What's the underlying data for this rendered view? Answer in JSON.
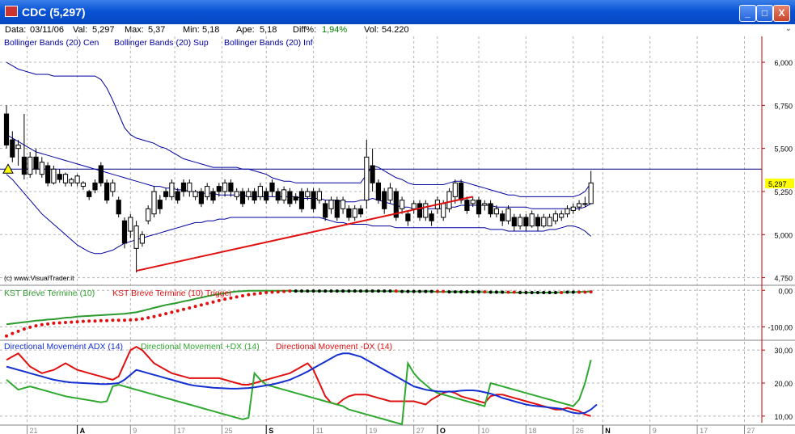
{
  "window": {
    "title": "CDC (5,297)",
    "buttons": {
      "minimize": "_",
      "maximize": "□",
      "close": "X"
    }
  },
  "info": {
    "data_label": "Data:",
    "date": "03/11/06",
    "val_label": "Val:",
    "val": "5,297",
    "max_label": "Max:",
    "max": "5,37",
    "min_label": "Min:",
    "min": "5,18",
    "ape_label": "Ape:",
    "ape": "5,18",
    "diff_label": "Diff%:",
    "diff": "1,94%",
    "vol_label": "Vol:",
    "vol": "54.220"
  },
  "colors": {
    "band": "#0000a0",
    "grid": "#b4b4b4",
    "axis": "#c00000",
    "trendline": "#e01010",
    "kst": "#2c9a2c",
    "trigger": "#e01010",
    "adx": "#1530d0",
    "plus_dx": "#2fa82f",
    "minus_dx": "#e01010",
    "price_highlight": "#ffff00"
  },
  "chart_data": [
    {
      "type": "candlestick",
      "legend": [
        "Bollinger Bands (20) Cen",
        "Bollinger Bands (20) Sup",
        "Bollinger Bands (20) Inf"
      ],
      "watermark": "(c) www.VisualTrader.it",
      "ylim": [
        4.72,
        6.08
      ],
      "yticks": [
        4.75,
        5.0,
        5.25,
        5.5,
        5.75,
        6.0
      ],
      "ytick_labels": [
        "4,750",
        "5,000",
        "5,250",
        "5,500",
        "5,750",
        "6,000"
      ],
      "last_price": 5.297,
      "last_price_label": "5,297",
      "reference_line": 5.38,
      "open": [
        5.7,
        5.55,
        5.5,
        5.45,
        5.35,
        5.45,
        5.35,
        5.4,
        5.3,
        5.35,
        5.3,
        5.3,
        5.3,
        5.28,
        5.25,
        5.3,
        5.4,
        5.3,
        5.25,
        5.2,
        5.08,
        5.02,
        4.92,
        4.95,
        5.08,
        5.12,
        5.2,
        5.25,
        5.22,
        5.25,
        5.3,
        5.25,
        5.22,
        5.25,
        5.22,
        5.25,
        5.28,
        5.25,
        5.3,
        5.22,
        5.25,
        5.22,
        5.25,
        5.22,
        5.25,
        5.3,
        5.25,
        5.2,
        5.25,
        5.22,
        5.25,
        5.22,
        5.25,
        5.2,
        5.18,
        5.15,
        5.2,
        5.15,
        5.15,
        5.1,
        5.15,
        5.2,
        5.4,
        5.3,
        5.25,
        5.2,
        5.25,
        5.15,
        5.12,
        5.15,
        5.18,
        5.1,
        5.12,
        5.15,
        5.1,
        5.15,
        5.22,
        5.3,
        5.2,
        5.18,
        5.2,
        5.17,
        5.18,
        5.12,
        5.12,
        5.08,
        5.1,
        5.05,
        5.1,
        5.05,
        5.1,
        5.05,
        5.05,
        5.08,
        5.1,
        5.12,
        5.14,
        5.16,
        5.18,
        5.18
      ],
      "close": [
        5.52,
        5.45,
        5.52,
        5.35,
        5.45,
        5.38,
        5.42,
        5.3,
        5.38,
        5.32,
        5.35,
        5.32,
        5.34,
        5.3,
        5.22,
        5.26,
        5.3,
        5.2,
        5.3,
        5.12,
        4.95,
        5.1,
        5.05,
        5.0,
        5.15,
        5.25,
        5.15,
        5.22,
        5.3,
        5.2,
        5.25,
        5.3,
        5.25,
        5.18,
        5.28,
        5.2,
        5.25,
        5.3,
        5.25,
        5.25,
        5.18,
        5.25,
        5.2,
        5.28,
        5.2,
        5.25,
        5.2,
        5.26,
        5.18,
        5.2,
        5.15,
        5.25,
        5.15,
        5.25,
        5.1,
        5.2,
        5.1,
        5.2,
        5.1,
        5.15,
        5.12,
        5.45,
        5.3,
        5.2,
        5.15,
        5.27,
        5.1,
        5.2,
        5.08,
        5.18,
        5.1,
        5.18,
        5.08,
        5.2,
        5.18,
        5.25,
        5.3,
        5.2,
        5.14,
        5.2,
        5.12,
        5.18,
        5.12,
        5.15,
        5.08,
        5.15,
        5.05,
        5.1,
        5.05,
        5.12,
        5.05,
        5.1,
        5.1,
        5.12,
        5.12,
        5.15,
        5.16,
        5.18,
        5.18,
        5.3
      ],
      "high": [
        5.75,
        5.6,
        5.55,
        5.7,
        5.48,
        5.5,
        5.45,
        5.42,
        5.4,
        5.38,
        5.36,
        5.33,
        5.35,
        5.31,
        5.26,
        5.32,
        5.42,
        5.32,
        5.32,
        5.22,
        5.1,
        5.12,
        5.08,
        5.02,
        5.17,
        5.28,
        5.23,
        5.27,
        5.32,
        5.27,
        5.32,
        5.32,
        5.26,
        5.27,
        5.3,
        5.27,
        5.3,
        5.32,
        5.32,
        5.27,
        5.27,
        5.27,
        5.27,
        5.3,
        5.27,
        5.32,
        5.27,
        5.28,
        5.27,
        5.24,
        5.27,
        5.27,
        5.27,
        5.27,
        5.2,
        5.22,
        5.22,
        5.22,
        5.17,
        5.17,
        5.17,
        5.55,
        5.5,
        5.32,
        5.27,
        5.3,
        5.27,
        5.22,
        5.14,
        5.2,
        5.2,
        5.2,
        5.14,
        5.22,
        5.2,
        5.27,
        5.32,
        5.32,
        5.22,
        5.22,
        5.22,
        5.2,
        5.2,
        5.17,
        5.14,
        5.17,
        5.12,
        5.12,
        5.12,
        5.14,
        5.12,
        5.12,
        5.12,
        5.14,
        5.14,
        5.17,
        5.18,
        5.2,
        5.22,
        5.37
      ],
      "low": [
        5.5,
        5.42,
        5.4,
        5.32,
        5.33,
        5.35,
        5.33,
        5.28,
        5.29,
        5.3,
        5.28,
        5.28,
        5.28,
        5.26,
        5.2,
        5.24,
        5.28,
        5.18,
        5.22,
        5.1,
        4.92,
        4.98,
        4.78,
        4.93,
        5.06,
        5.1,
        5.12,
        5.2,
        5.2,
        5.18,
        5.22,
        5.22,
        5.2,
        5.16,
        5.2,
        5.18,
        5.22,
        5.22,
        5.22,
        5.2,
        5.16,
        5.2,
        5.18,
        5.2,
        5.18,
        5.22,
        5.18,
        5.18,
        5.16,
        5.18,
        5.13,
        5.2,
        5.13,
        5.18,
        5.08,
        5.12,
        5.08,
        5.12,
        5.08,
        5.08,
        5.1,
        5.15,
        5.25,
        5.18,
        5.12,
        5.18,
        5.08,
        5.12,
        5.05,
        5.12,
        5.08,
        5.08,
        5.05,
        5.12,
        5.08,
        5.13,
        5.18,
        5.18,
        5.12,
        5.16,
        5.1,
        5.14,
        5.1,
        5.1,
        5.05,
        5.06,
        5.02,
        5.03,
        5.02,
        5.04,
        5.02,
        5.04,
        5.06,
        5.06,
        5.08,
        5.1,
        5.12,
        5.14,
        5.16,
        5.18
      ],
      "bb_center": [
        5.58,
        5.56,
        5.54,
        5.52,
        5.5,
        5.48,
        5.47,
        5.46,
        5.45,
        5.44,
        5.43,
        5.42,
        5.41,
        5.4,
        5.39,
        5.38,
        5.37,
        5.36,
        5.35,
        5.34,
        5.33,
        5.32,
        5.31,
        5.3,
        5.29,
        5.28,
        5.28,
        5.27,
        5.27,
        5.26,
        5.26,
        5.25,
        5.25,
        5.24,
        5.24,
        5.24,
        5.23,
        5.23,
        5.23,
        5.23,
        5.23,
        5.22,
        5.22,
        5.22,
        5.22,
        5.22,
        5.22,
        5.22,
        5.22,
        5.22,
        5.21,
        5.21,
        5.21,
        5.21,
        5.2,
        5.2,
        5.2,
        5.19,
        5.19,
        5.19,
        5.2,
        5.2,
        5.21,
        5.2,
        5.19,
        5.18,
        5.17,
        5.16,
        5.16,
        5.15,
        5.15,
        5.15,
        5.15,
        5.15,
        5.15,
        5.16,
        5.16,
        5.17,
        5.17,
        5.17,
        5.17,
        5.17,
        5.17,
        5.16,
        5.16,
        5.16,
        5.16,
        5.16,
        5.16,
        5.15,
        5.15,
        5.15,
        5.15,
        5.15,
        5.15,
        5.15,
        5.15,
        5.15,
        5.16,
        5.18
      ],
      "bb_upper": [
        6.0,
        5.98,
        5.96,
        5.95,
        5.94,
        5.93,
        5.93,
        5.93,
        5.92,
        5.92,
        5.92,
        5.92,
        5.92,
        5.92,
        5.92,
        5.92,
        5.9,
        5.85,
        5.78,
        5.7,
        5.62,
        5.58,
        5.56,
        5.55,
        5.54,
        5.53,
        5.51,
        5.5,
        5.48,
        5.46,
        5.44,
        5.43,
        5.42,
        5.41,
        5.4,
        5.39,
        5.39,
        5.39,
        5.39,
        5.39,
        5.38,
        5.38,
        5.37,
        5.36,
        5.35,
        5.33,
        5.32,
        5.31,
        5.31,
        5.3,
        5.3,
        5.3,
        5.3,
        5.3,
        5.3,
        5.3,
        5.3,
        5.3,
        5.3,
        5.3,
        5.3,
        5.35,
        5.4,
        5.39,
        5.37,
        5.35,
        5.33,
        5.32,
        5.3,
        5.29,
        5.29,
        5.29,
        5.29,
        5.29,
        5.29,
        5.3,
        5.31,
        5.31,
        5.3,
        5.29,
        5.28,
        5.27,
        5.26,
        5.25,
        5.24,
        5.23,
        5.23,
        5.22,
        5.22,
        5.22,
        5.22,
        5.22,
        5.22,
        5.22,
        5.22,
        5.22,
        5.22,
        5.23,
        5.25,
        5.3
      ],
      "bb_lower": [
        5.35,
        5.32,
        5.28,
        5.24,
        5.2,
        5.16,
        5.12,
        5.09,
        5.06,
        5.03,
        5.0,
        4.97,
        4.94,
        4.92,
        4.9,
        4.89,
        4.89,
        4.9,
        4.91,
        4.93,
        4.95,
        4.96,
        4.97,
        4.98,
        4.99,
        5.0,
        5.01,
        5.02,
        5.03,
        5.04,
        5.05,
        5.06,
        5.07,
        5.07,
        5.08,
        5.08,
        5.09,
        5.09,
        5.1,
        5.1,
        5.1,
        5.1,
        5.1,
        5.1,
        5.1,
        5.1,
        5.1,
        5.1,
        5.1,
        5.1,
        5.1,
        5.1,
        5.1,
        5.1,
        5.09,
        5.08,
        5.07,
        5.07,
        5.06,
        5.06,
        5.06,
        5.06,
        5.05,
        5.05,
        5.05,
        5.05,
        5.04,
        5.04,
        5.04,
        5.04,
        5.04,
        5.04,
        5.04,
        5.04,
        5.04,
        5.04,
        5.04,
        5.04,
        5.04,
        5.04,
        5.04,
        5.04,
        5.03,
        5.03,
        5.03,
        5.02,
        5.02,
        5.02,
        5.02,
        5.02,
        5.02,
        5.02,
        5.03,
        5.03,
        5.04,
        5.05,
        5.05,
        5.04,
        5.02,
        4.99
      ],
      "trendline": [
        [
          22,
          4.79
        ],
        [
          79,
          5.22
        ]
      ]
    },
    {
      "type": "line",
      "legend": [
        "KST Breve Termine (10)",
        "KST Breve Termine (10) Trigger"
      ],
      "ylim": [
        -130,
        5
      ],
      "yticks": [
        0,
        -100
      ],
      "ytick_labels": [
        "0,00",
        "-100,00"
      ],
      "kst": [
        -93,
        -91,
        -89,
        -87,
        -85,
        -83,
        -82,
        -80,
        -79,
        -77,
        -75,
        -74,
        -72,
        -71,
        -70,
        -69,
        -68,
        -67,
        -66,
        -65,
        -64,
        -62,
        -60,
        -56,
        -52,
        -48,
        -44,
        -40,
        -37,
        -34,
        -30,
        -27,
        -23,
        -20,
        -16,
        -13,
        -10,
        -8,
        -5,
        -3,
        -2,
        -1,
        -1,
        -1,
        -1,
        -1,
        -1,
        -1,
        -1,
        -2,
        -2,
        -2,
        -2,
        -2,
        -2,
        -2,
        -2,
        -2,
        -2,
        -2,
        -2,
        -2,
        -2,
        -2,
        -2,
        -2,
        -3,
        -3,
        -3,
        -3,
        -3,
        -3,
        -3,
        -4,
        -4,
        -4,
        -4,
        -4,
        -4,
        -4,
        -4,
        -5,
        -5,
        -5,
        -5,
        -6,
        -6,
        -6,
        -6,
        -6,
        -6,
        -6,
        -6,
        -6,
        -5,
        -5,
        -5,
        -4,
        -4,
        -3
      ],
      "trigger": [
        -125,
        -118,
        -112,
        -106,
        -101,
        -97,
        -94,
        -92,
        -90,
        -89,
        -88,
        -87,
        -86,
        -85,
        -84,
        -84,
        -83,
        -83,
        -82,
        -82,
        -82,
        -81,
        -80,
        -78,
        -75,
        -72,
        -68,
        -64,
        -60,
        -56,
        -52,
        -48,
        -44,
        -40,
        -36,
        -32,
        -28,
        -24,
        -21,
        -18,
        -15,
        -12,
        -10,
        -8,
        -6,
        -5,
        -4,
        -3,
        -2,
        -2,
        -2,
        -2,
        -2,
        -2,
        -2,
        -2,
        -2,
        -2,
        -2,
        -2,
        -2,
        -2,
        -2,
        -2,
        -2,
        -2,
        -2,
        -3,
        -3,
        -3,
        -3,
        -3,
        -3,
        -3,
        -3,
        -4,
        -4,
        -4,
        -4,
        -4,
        -4,
        -4,
        -5,
        -5,
        -5,
        -5,
        -5,
        -6,
        -6,
        -6,
        -6,
        -6,
        -6,
        -6,
        -6,
        -5,
        -5,
        -5,
        -5,
        -4
      ]
    },
    {
      "type": "line",
      "legend": [
        "Directional Movement ADX (14)",
        "Directional Movement +DX (14)",
        "Directional Movement -DX (14)"
      ],
      "ylim": [
        8,
        32
      ],
      "yticks": [
        10,
        20,
        30
      ],
      "ytick_labels": [
        "10,00",
        "20,00",
        "30,00"
      ],
      "adx": [
        25,
        24.5,
        24,
        23.5,
        23,
        22.5,
        22,
        21.5,
        21,
        20.7,
        20.4,
        20.2,
        20.1,
        20,
        19.9,
        19.8,
        19.7,
        19.7,
        19.8,
        20,
        21,
        22.5,
        24,
        23.5,
        23,
        22.5,
        22,
        21.5,
        21,
        20.5,
        20,
        19.5,
        19.2,
        19,
        18.8,
        18.6,
        18.5,
        18.4,
        18.3,
        18.3,
        18.4,
        18.5,
        18.7,
        19,
        19.3,
        19.6,
        20,
        20.5,
        21,
        21.8,
        22.6,
        23.5,
        24.5,
        25.5,
        26.5,
        27.5,
        28.5,
        29,
        29,
        28.5,
        28,
        27,
        26,
        25,
        24,
        23,
        22,
        21,
        20,
        19,
        18.5,
        18,
        17.7,
        17.5,
        17.4,
        17.4,
        17.5,
        17.7,
        17.8,
        17.8,
        17.6,
        17.2,
        16.8,
        16.2,
        15.5,
        15,
        14.5,
        14,
        13.5,
        13.2,
        13,
        12.8,
        12.6,
        12.4,
        12.2,
        11.5,
        11,
        10.8,
        11,
        12,
        13.5
      ],
      "plus_dx": [
        21,
        19.5,
        18,
        18.5,
        19,
        18.5,
        18,
        17.5,
        17,
        16.5,
        16,
        15.7,
        15.4,
        15.1,
        14.8,
        14.5,
        14.2,
        14.5,
        19,
        19.5,
        19,
        18.5,
        18,
        17.5,
        17,
        16.5,
        16,
        15.5,
        15,
        14.5,
        14,
        13.5,
        13,
        12.5,
        12,
        11.5,
        11,
        10.5,
        10,
        9.5,
        9,
        9.5,
        23,
        21,
        19.5,
        19,
        18.5,
        18,
        17.5,
        17,
        16.5,
        16,
        15.5,
        15,
        14.5,
        14,
        13.5,
        13,
        12,
        11.5,
        11,
        10.5,
        10,
        9.5,
        9,
        8.5,
        8,
        7.5,
        26,
        23,
        21,
        19.5,
        18,
        17,
        16.5,
        16,
        15.5,
        15,
        14.5,
        14,
        13.5,
        13,
        20,
        19.5,
        19,
        18.5,
        18,
        17.5,
        17,
        16.5,
        16,
        15.5,
        15,
        14.5,
        14,
        13.5,
        13,
        15,
        20,
        27
      ],
      "minus_dx": [
        27,
        28,
        29,
        27,
        25,
        24,
        23,
        23.5,
        24,
        25,
        26,
        25,
        24,
        23.5,
        23,
        22.5,
        22,
        21.5,
        21,
        22,
        26,
        30,
        31,
        30,
        28,
        26,
        25,
        24,
        23,
        22.5,
        22,
        21.5,
        21.5,
        21.5,
        21.5,
        21.5,
        21.5,
        21,
        20.5,
        20,
        19.5,
        19.5,
        20,
        20.5,
        21,
        21.5,
        22,
        22.5,
        23,
        24,
        25,
        26,
        24,
        20,
        16,
        14,
        13.5,
        15,
        16,
        16.5,
        16.5,
        16.5,
        16,
        15.5,
        15,
        14.5,
        14.5,
        14.5,
        14.5,
        14.5,
        14,
        13.5,
        15,
        16,
        17,
        17.5,
        17,
        16,
        15.5,
        15,
        14.5,
        14,
        16,
        16.5,
        16.5,
        16,
        15.5,
        15,
        14.5,
        14,
        13.5,
        13,
        12.5,
        12,
        12,
        12.5,
        12,
        11.5,
        10.5,
        10
      ]
    },
    {
      "type": "axis",
      "x_tick_labels": [
        "21",
        "A",
        "9",
        "17",
        "25",
        "S",
        "11",
        "19",
        "27",
        "O",
        "10",
        "18",
        "26",
        "N",
        "9",
        "17",
        "27"
      ],
      "x_tick_positions": [
        3.5,
        12,
        21,
        28.5,
        36.5,
        44,
        52,
        61,
        69,
        73,
        80,
        88,
        96,
        101,
        109,
        117,
        125
      ],
      "x_tick_major": [
        false,
        true,
        false,
        false,
        false,
        true,
        false,
        false,
        false,
        true,
        false,
        false,
        false,
        true,
        false,
        false,
        false
      ]
    }
  ]
}
